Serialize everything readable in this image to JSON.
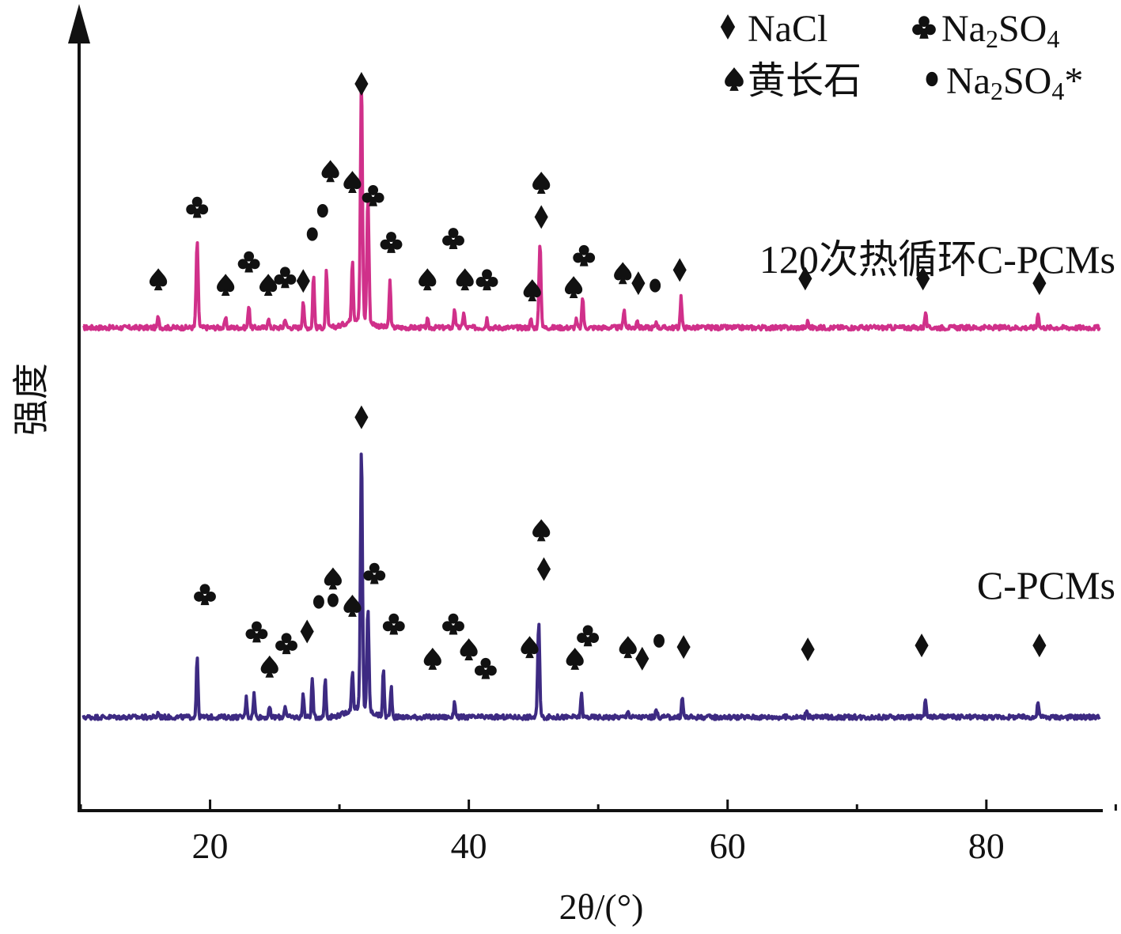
{
  "chart_data": {
    "type": "line",
    "xlabel": "2θ/(°)",
    "ylabel": "强度",
    "xlim": [
      10,
      89
    ],
    "xticks": [
      20,
      40,
      60,
      80
    ],
    "yticks_shown": false,
    "legend": {
      "placement": "top-right",
      "entries": [
        {
          "marker": "diamond",
          "main": "NaCl",
          "sub": "",
          "main2": "",
          "sub2": "",
          "tail": ""
        },
        {
          "marker": "club",
          "main": "Na",
          "sub": "2",
          "main2": "SO",
          "sub2": "4",
          "tail": ""
        },
        {
          "marker": "spade",
          "main": "黄长石",
          "sub": "",
          "main2": "",
          "sub2": "",
          "tail": ""
        },
        {
          "marker": "dot",
          "main": "Na",
          "sub": "2",
          "main2": "SO",
          "sub2": "4",
          "tail": "*"
        }
      ]
    },
    "series": [
      {
        "name": "120次热循环C-PCMs",
        "color": "#d0308a",
        "baseline": 0.62,
        "peaks": [
          {
            "x": 16.0,
            "h": 0.015
          },
          {
            "x": 19.0,
            "h": 0.11
          },
          {
            "x": 21.2,
            "h": 0.012
          },
          {
            "x": 23.0,
            "h": 0.03
          },
          {
            "x": 24.5,
            "h": 0.012
          },
          {
            "x": 25.8,
            "h": 0.012
          },
          {
            "x": 27.2,
            "h": 0.035
          },
          {
            "x": 28.0,
            "h": 0.07
          },
          {
            "x": 29.0,
            "h": 0.075
          },
          {
            "x": 31.0,
            "h": 0.08
          },
          {
            "x": 31.7,
            "h": 0.31
          },
          {
            "x": 32.2,
            "h": 0.16
          },
          {
            "x": 33.9,
            "h": 0.06
          },
          {
            "x": 36.8,
            "h": 0.01
          },
          {
            "x": 38.9,
            "h": 0.025
          },
          {
            "x": 39.6,
            "h": 0.02
          },
          {
            "x": 41.4,
            "h": 0.012
          },
          {
            "x": 44.8,
            "h": 0.01
          },
          {
            "x": 45.5,
            "h": 0.11
          },
          {
            "x": 48.3,
            "h": 0.01
          },
          {
            "x": 48.8,
            "h": 0.04
          },
          {
            "x": 52.0,
            "h": 0.025
          },
          {
            "x": 53.0,
            "h": 0.01
          },
          {
            "x": 54.5,
            "h": 0.008
          },
          {
            "x": 56.4,
            "h": 0.04
          },
          {
            "x": 66.2,
            "h": 0.008
          },
          {
            "x": 75.3,
            "h": 0.02
          },
          {
            "x": 84.0,
            "h": 0.02
          }
        ],
        "markers": [
          {
            "x": 16.0,
            "h": 0.062,
            "m": "spade"
          },
          {
            "x": 19.0,
            "h": 0.155,
            "m": "club"
          },
          {
            "x": 21.2,
            "h": 0.055,
            "m": "spade"
          },
          {
            "x": 23.0,
            "h": 0.085,
            "m": "club"
          },
          {
            "x": 24.5,
            "h": 0.055,
            "m": "spade"
          },
          {
            "x": 25.8,
            "h": 0.065,
            "m": "club"
          },
          {
            "x": 27.2,
            "h": 0.06,
            "m": "diamond"
          },
          {
            "x": 27.9,
            "h": 0.12,
            "m": "dot"
          },
          {
            "x": 28.7,
            "h": 0.15,
            "m": "dot"
          },
          {
            "x": 29.3,
            "h": 0.201,
            "m": "spade"
          },
          {
            "x": 31.0,
            "h": 0.187,
            "m": "spade"
          },
          {
            "x": 31.7,
            "h": 0.313,
            "m": "diamond"
          },
          {
            "x": 32.6,
            "h": 0.17,
            "m": "club"
          },
          {
            "x": 34.0,
            "h": 0.11,
            "m": "club"
          },
          {
            "x": 36.8,
            "h": 0.062,
            "m": "spade"
          },
          {
            "x": 38.8,
            "h": 0.115,
            "m": "club"
          },
          {
            "x": 39.7,
            "h": 0.062,
            "m": "spade"
          },
          {
            "x": 41.4,
            "h": 0.062,
            "m": "club"
          },
          {
            "x": 44.9,
            "h": 0.048,
            "m": "spade"
          },
          {
            "x": 45.6,
            "h": 0.186,
            "m": "spade"
          },
          {
            "x": 45.6,
            "h": 0.142,
            "m": "diamond"
          },
          {
            "x": 48.1,
            "h": 0.052,
            "m": "spade"
          },
          {
            "x": 48.9,
            "h": 0.093,
            "m": "club"
          },
          {
            "x": 51.9,
            "h": 0.07,
            "m": "spade"
          },
          {
            "x": 53.1,
            "h": 0.057,
            "m": "diamond"
          },
          {
            "x": 54.4,
            "h": 0.054,
            "m": "dot"
          },
          {
            "x": 56.3,
            "h": 0.074,
            "m": "diamond"
          },
          {
            "x": 66.0,
            "h": 0.063,
            "m": "diamond"
          },
          {
            "x": 75.1,
            "h": 0.063,
            "m": "diamond"
          },
          {
            "x": 84.1,
            "h": 0.057,
            "m": "diamond"
          }
        ]
      },
      {
        "name": "C-PCMs",
        "color": "#3d2a82",
        "baseline": 0.12,
        "peaks": [
          {
            "x": 16.0,
            "h": 0.006
          },
          {
            "x": 19.0,
            "h": 0.08
          },
          {
            "x": 22.8,
            "h": 0.025
          },
          {
            "x": 23.4,
            "h": 0.03
          },
          {
            "x": 24.6,
            "h": 0.012
          },
          {
            "x": 25.8,
            "h": 0.015
          },
          {
            "x": 27.2,
            "h": 0.03
          },
          {
            "x": 27.9,
            "h": 0.05
          },
          {
            "x": 28.9,
            "h": 0.05
          },
          {
            "x": 31.0,
            "h": 0.05
          },
          {
            "x": 31.7,
            "h": 0.335
          },
          {
            "x": 32.2,
            "h": 0.13
          },
          {
            "x": 33.4,
            "h": 0.06
          },
          {
            "x": 34.0,
            "h": 0.04
          },
          {
            "x": 38.9,
            "h": 0.02
          },
          {
            "x": 45.4,
            "h": 0.12
          },
          {
            "x": 48.7,
            "h": 0.03
          },
          {
            "x": 52.3,
            "h": 0.01
          },
          {
            "x": 54.5,
            "h": 0.01
          },
          {
            "x": 56.5,
            "h": 0.025
          },
          {
            "x": 66.1,
            "h": 0.01
          },
          {
            "x": 75.3,
            "h": 0.025
          },
          {
            "x": 84.0,
            "h": 0.02
          }
        ],
        "markers": [
          {
            "x": 19.6,
            "h": 0.158,
            "m": "club"
          },
          {
            "x": 23.6,
            "h": 0.11,
            "m": "club"
          },
          {
            "x": 24.6,
            "h": 0.065,
            "m": "spade"
          },
          {
            "x": 25.9,
            "h": 0.095,
            "m": "club"
          },
          {
            "x": 27.5,
            "h": 0.11,
            "m": "diamond"
          },
          {
            "x": 28.4,
            "h": 0.148,
            "m": "dot"
          },
          {
            "x": 29.5,
            "h": 0.178,
            "m": "spade"
          },
          {
            "x": 29.5,
            "h": 0.15,
            "m": "dot"
          },
          {
            "x": 31.0,
            "h": 0.143,
            "m": "spade"
          },
          {
            "x": 31.7,
            "h": 0.385,
            "m": "diamond"
          },
          {
            "x": 32.7,
            "h": 0.185,
            "m": "club"
          },
          {
            "x": 34.2,
            "h": 0.12,
            "m": "club"
          },
          {
            "x": 37.2,
            "h": 0.075,
            "m": "spade"
          },
          {
            "x": 38.8,
            "h": 0.12,
            "m": "club"
          },
          {
            "x": 40.0,
            "h": 0.087,
            "m": "spade"
          },
          {
            "x": 41.3,
            "h": 0.063,
            "m": "club"
          },
          {
            "x": 44.7,
            "h": 0.09,
            "m": "spade"
          },
          {
            "x": 45.6,
            "h": 0.24,
            "m": "spade"
          },
          {
            "x": 45.8,
            "h": 0.19,
            "m": "diamond"
          },
          {
            "x": 48.2,
            "h": 0.075,
            "m": "spade"
          },
          {
            "x": 49.2,
            "h": 0.105,
            "m": "club"
          },
          {
            "x": 52.3,
            "h": 0.09,
            "m": "spade"
          },
          {
            "x": 53.4,
            "h": 0.075,
            "m": "diamond"
          },
          {
            "x": 54.7,
            "h": 0.098,
            "m": "dot"
          },
          {
            "x": 56.6,
            "h": 0.09,
            "m": "diamond"
          },
          {
            "x": 66.2,
            "h": 0.087,
            "m": "diamond"
          },
          {
            "x": 75.0,
            "h": 0.092,
            "m": "diamond"
          },
          {
            "x": 84.1,
            "h": 0.092,
            "m": "diamond"
          }
        ]
      }
    ]
  }
}
